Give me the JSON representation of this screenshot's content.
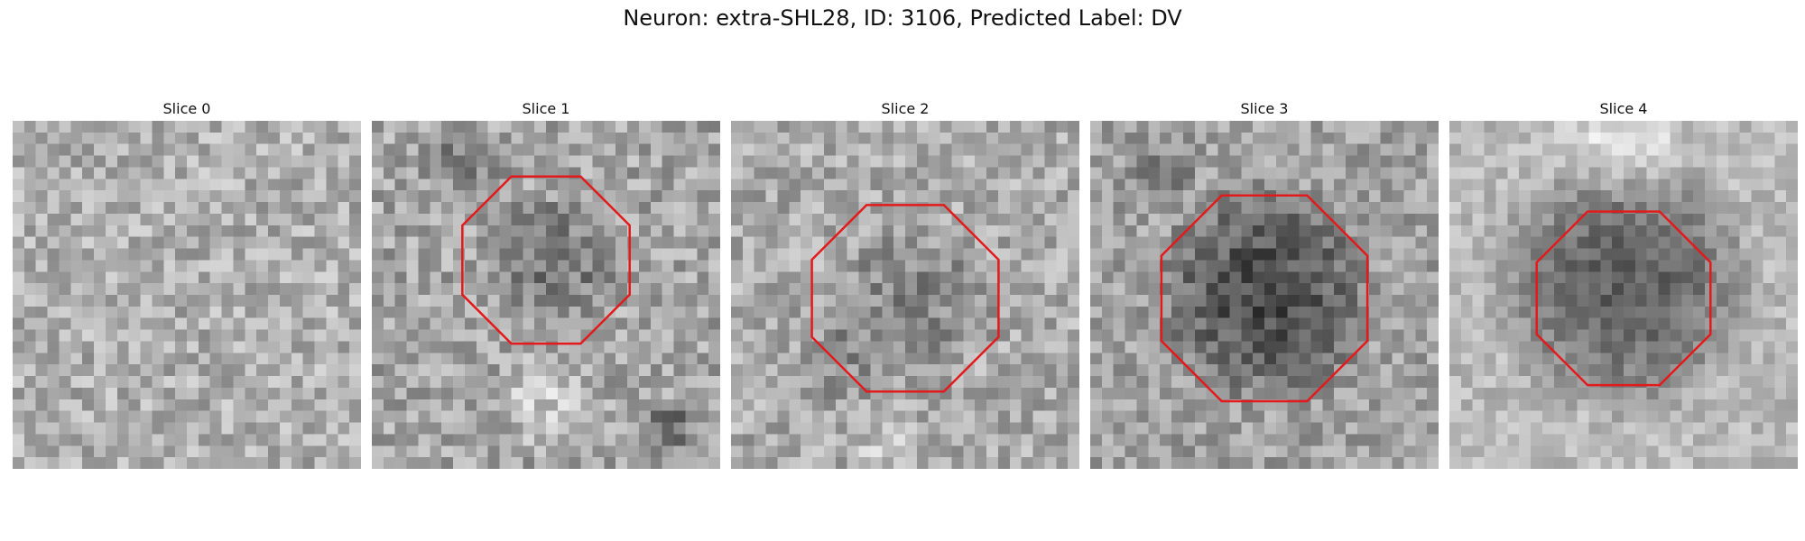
{
  "figure": {
    "title": "Neuron: extra-SHL28, ID: 3106, Predicted Label: DV"
  },
  "colors": {
    "contour": "#e31a1c",
    "background": "#ffffff"
  },
  "slices": [
    {
      "label": "Slice 0"
    },
    {
      "label": "Slice 1"
    },
    {
      "label": "Slice 2"
    },
    {
      "label": "Slice 3"
    },
    {
      "label": "Slice 4"
    }
  ]
}
